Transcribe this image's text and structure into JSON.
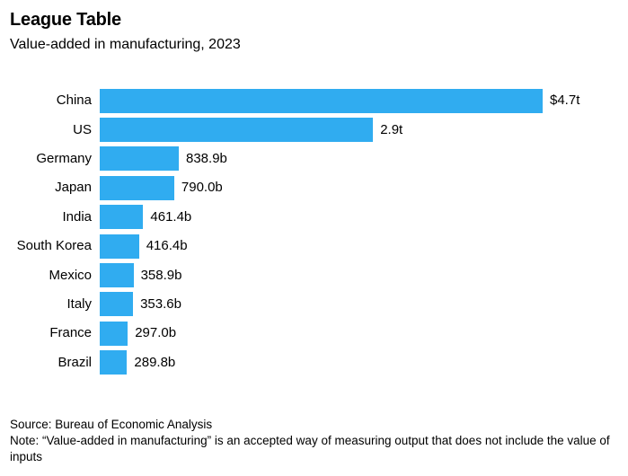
{
  "header": {
    "title": "League Table",
    "subtitle": "Value-added in manufacturing, 2023"
  },
  "chart_data": {
    "type": "bar",
    "orientation": "horizontal",
    "title": "League Table",
    "subtitle": "Value-added in manufacturing, 2023",
    "categories": [
      "China",
      "US",
      "Germany",
      "Japan",
      "India",
      "South Korea",
      "Mexico",
      "Italy",
      "France",
      "Brazil"
    ],
    "values_billions_usd": [
      4700,
      2900,
      838.9,
      790.0,
      461.4,
      416.4,
      358.9,
      353.6,
      297.0,
      289.8
    ],
    "value_labels": [
      "$4.7t",
      "2.9t",
      "838.9b",
      "790.0b",
      "461.4b",
      "416.4b",
      "358.9b",
      "353.6b",
      "297.0b",
      "289.8b"
    ],
    "xlim": [
      0,
      4700
    ],
    "bar_color": "#30acf0",
    "grid": false,
    "legend": false
  },
  "footer": {
    "source": "Source: Bureau of Economic Analysis",
    "note": "Note: “Value-added in manufacturing” is an accepted way of measuring output that does not include the value of inputs"
  }
}
